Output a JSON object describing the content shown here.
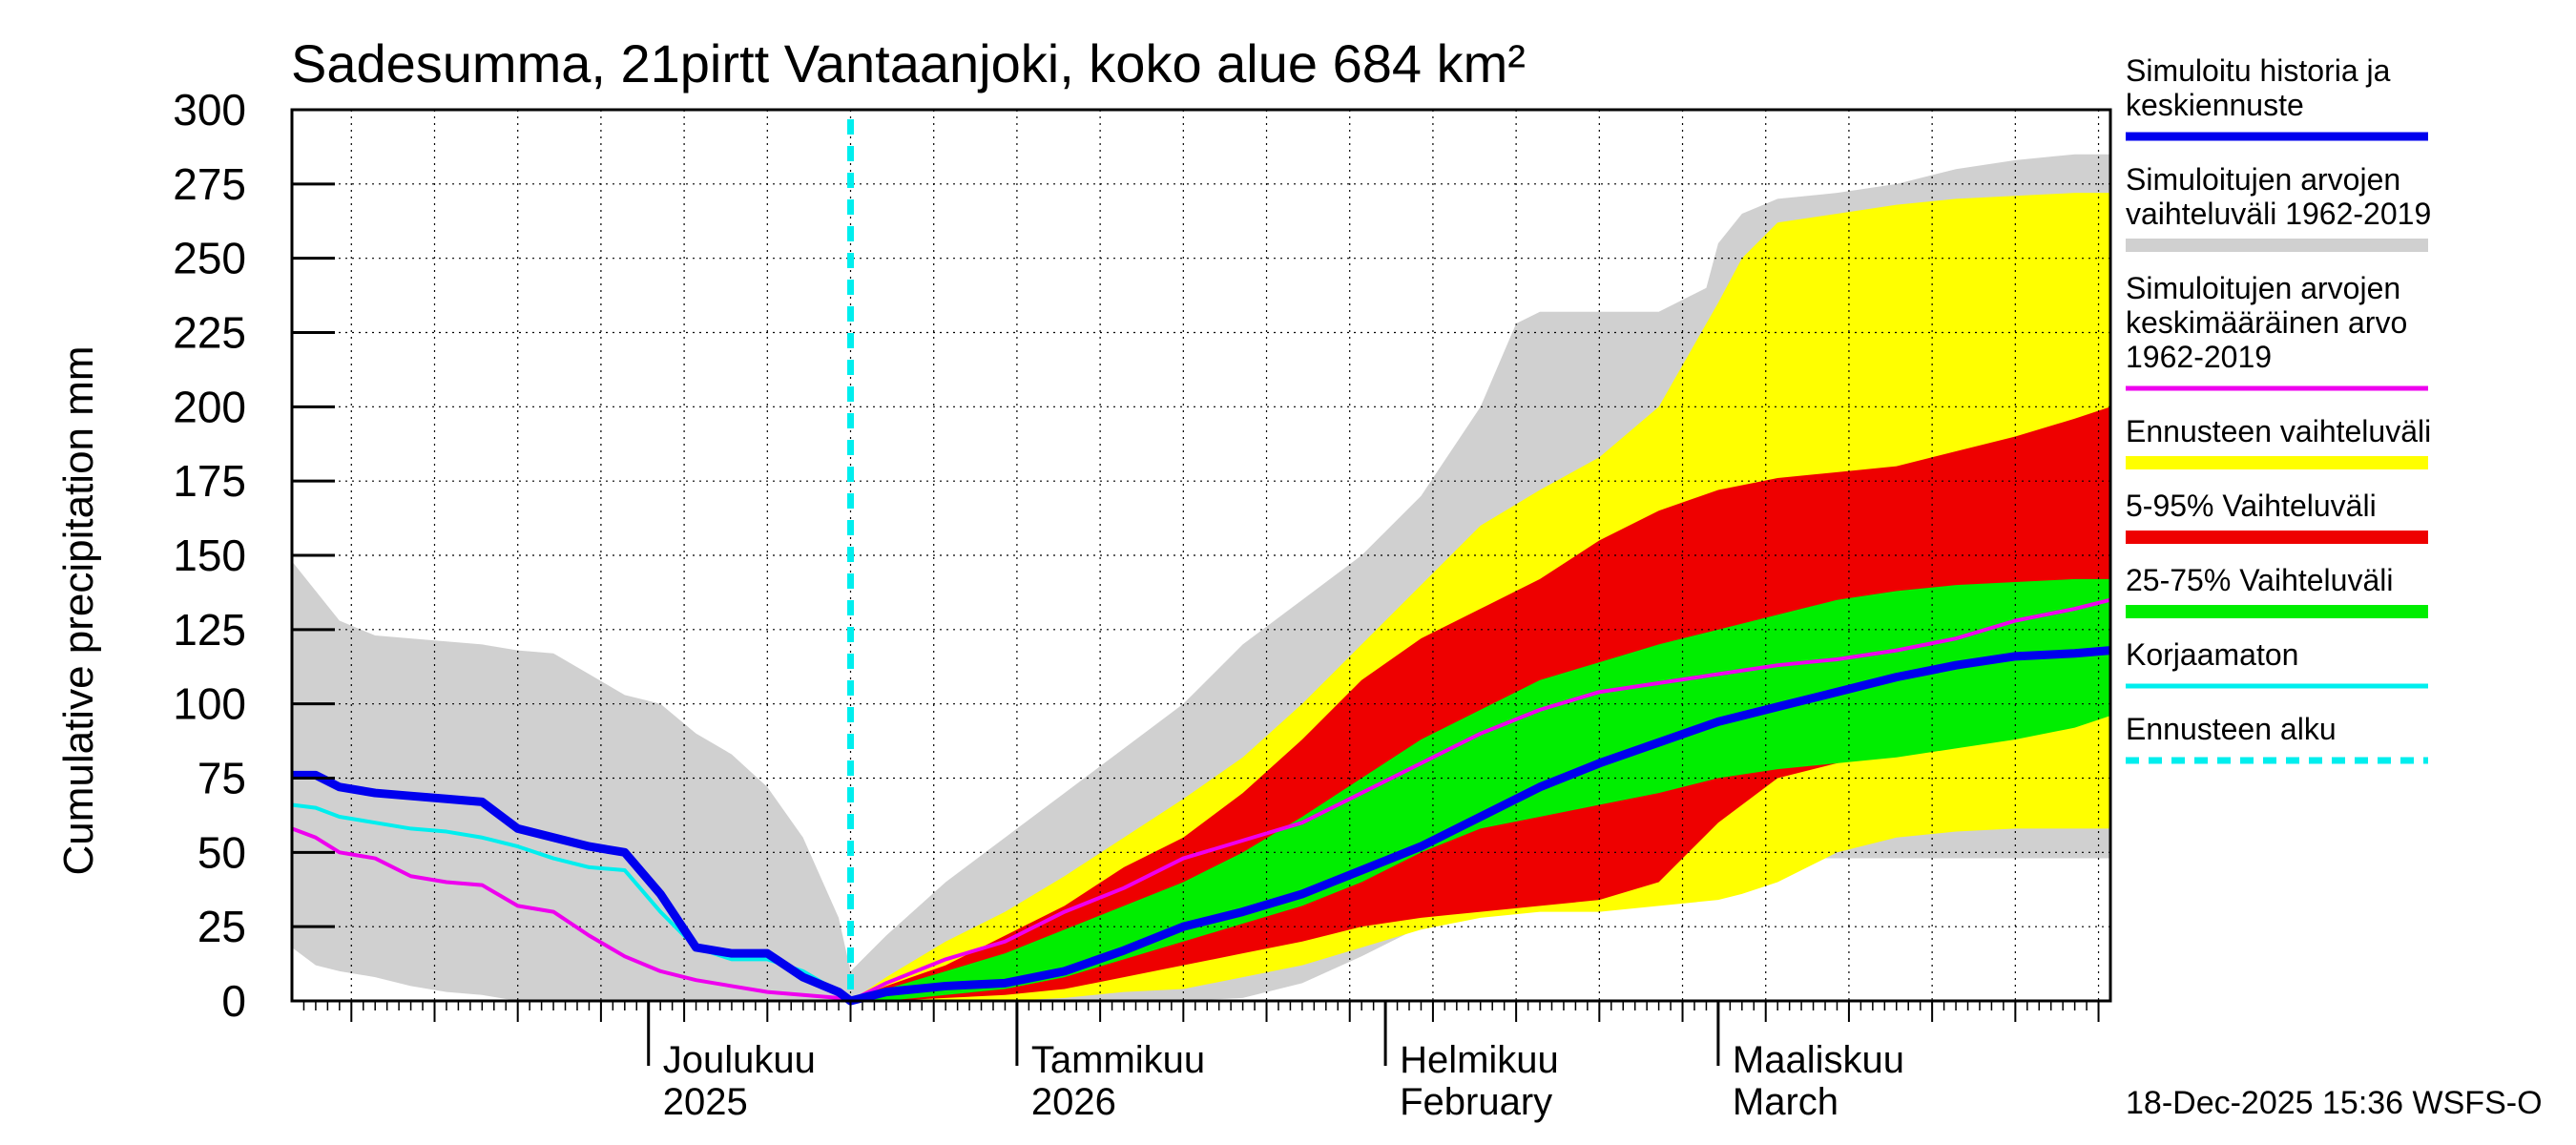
{
  "chart_data": {
    "type": "area",
    "title": "Sadesumma, 21pirtt Vantaanjoki, koko alue 684 km²",
    "ylabel": "Cumulative precipitation   mm",
    "ylim": [
      0,
      300
    ],
    "yticks": [
      0,
      25,
      50,
      75,
      100,
      125,
      150,
      175,
      200,
      225,
      250,
      275,
      300
    ],
    "ytick_labels": [
      "0",
      "25",
      "50",
      "75",
      "100",
      "125",
      "150",
      "175",
      "200",
      "225",
      "250",
      "275",
      "300"
    ],
    "x_unit": "days since 2025-11-01",
    "xlim": [
      0,
      153
    ],
    "month_labels": [
      {
        "x": 30,
        "line1": "Joulukuu",
        "line2": "2025"
      },
      {
        "x": 61,
        "line1": "Tammikuu",
        "line2": "2026"
      },
      {
        "x": 92,
        "line1": "Helmikuu",
        "line2": "February"
      },
      {
        "x": 120,
        "line1": "Maaliskuu",
        "line2": "March"
      }
    ],
    "forecast_start_x": 47,
    "footer": "18-Dec-2025 15:36 WSFS-O",
    "legend": [
      {
        "label": "Simuloitu historia ja keskiennuste",
        "lines": [
          "Simuloitu historia ja",
          "keskiennuste"
        ],
        "color": "#0000ee",
        "style": "thick"
      },
      {
        "label": "Simuloitujen arvojen vaihteluväli 1962-2019",
        "lines": [
          "Simuloitujen arvojen",
          "vaihteluväli 1962-2019"
        ],
        "color": "#d0d0d0",
        "style": "band"
      },
      {
        "label": "Simuloitujen arvojen keskimääräinen arvo 1962-2019",
        "lines": [
          "Simuloitujen arvojen",
          "keskimääräinen arvo",
          "  1962-2019"
        ],
        "color": "#ee00ee",
        "style": "line"
      },
      {
        "label": "Ennusteen vaihteluväli",
        "lines": [
          "Ennusteen vaihteluväli"
        ],
        "color": "#ffff00",
        "style": "band"
      },
      {
        "label": "5-95% Vaihteluväli",
        "lines": [
          "5-95% Vaihteluväli"
        ],
        "color": "#ee0000",
        "style": "band"
      },
      {
        "label": "25-75% Vaihteluväli",
        "lines": [
          "25-75% Vaihteluväli"
        ],
        "color": "#00ee00",
        "style": "band"
      },
      {
        "label": "Korjaamaton",
        "lines": [
          "Korjaamaton"
        ],
        "color": "#00eeee",
        "style": "line"
      },
      {
        "label": "Ennusteen alku",
        "lines": [
          "Ennusteen alku"
        ],
        "color": "#00eeee",
        "style": "dashed"
      }
    ],
    "series": [
      {
        "name": "Simuloitujen arvojen vaihteluväli 1962-2019",
        "kind": "band",
        "color": "#d0d0d0",
        "x": [
          0,
          2,
          4,
          7,
          10,
          13,
          16,
          19,
          22,
          25,
          28,
          31,
          34,
          37,
          40,
          43,
          46,
          47,
          50,
          55,
          60,
          65,
          70,
          75,
          80,
          85,
          90,
          95,
          100,
          103,
          105,
          110,
          115,
          119,
          120,
          122,
          125,
          130,
          135,
          140,
          145,
          150,
          153
        ],
        "upper": [
          148,
          138,
          128,
          123,
          122,
          121,
          120,
          118,
          117,
          110,
          103,
          100,
          90,
          83,
          72,
          55,
          28,
          10,
          22,
          40,
          55,
          70,
          85,
          100,
          120,
          135,
          150,
          170,
          200,
          228,
          232,
          232,
          232,
          240,
          255,
          265,
          270,
          272,
          275,
          280,
          283,
          285,
          285
        ],
        "lower": [
          18,
          12,
          10,
          8,
          5,
          3,
          2,
          0,
          0,
          0,
          0,
          0,
          0,
          0,
          0,
          0,
          0,
          0,
          0,
          0,
          0,
          0,
          0,
          0,
          1,
          6,
          15,
          25,
          32,
          38,
          40,
          42,
          45,
          47,
          48,
          48,
          48,
          48,
          48,
          48,
          48,
          48,
          48
        ]
      },
      {
        "name": "Ennusteen vaihteluväli",
        "kind": "band",
        "color": "#ffff00",
        "x": [
          47,
          50,
          55,
          60,
          65,
          70,
          75,
          80,
          85,
          90,
          95,
          100,
          105,
          110,
          115,
          120,
          122,
          125,
          130,
          135,
          140,
          145,
          150,
          153
        ],
        "upper": [
          0,
          8,
          20,
          30,
          42,
          55,
          68,
          82,
          100,
          120,
          140,
          160,
          172,
          183,
          200,
          235,
          250,
          262,
          265,
          268,
          270,
          271,
          272,
          272
        ],
        "lower": [
          0,
          0,
          0,
          0,
          1,
          3,
          4,
          8,
          12,
          18,
          24,
          28,
          30,
          30,
          32,
          34,
          36,
          40,
          50,
          55,
          57,
          58,
          58,
          58
        ]
      },
      {
        "name": "5-95% Vaihteluväli",
        "kind": "band",
        "color": "#ee0000",
        "x": [
          47,
          50,
          55,
          60,
          65,
          70,
          75,
          80,
          85,
          90,
          95,
          100,
          105,
          110,
          115,
          120,
          125,
          130,
          135,
          140,
          145,
          150,
          153
        ],
        "upper": [
          0,
          5,
          12,
          22,
          32,
          45,
          55,
          70,
          88,
          108,
          122,
          132,
          142,
          155,
          165,
          172,
          176,
          178,
          180,
          185,
          190,
          196,
          200
        ],
        "lower": [
          0,
          0,
          1,
          2,
          4,
          8,
          12,
          16,
          20,
          25,
          28,
          30,
          32,
          34,
          40,
          60,
          75,
          80,
          85,
          88,
          92,
          96,
          100
        ]
      },
      {
        "name": "25-75% Vaihteluväli",
        "kind": "band",
        "color": "#00ee00",
        "x": [
          47,
          50,
          55,
          60,
          65,
          70,
          75,
          80,
          85,
          90,
          95,
          100,
          105,
          110,
          115,
          120,
          125,
          130,
          135,
          140,
          145,
          150,
          153
        ],
        "upper": [
          0,
          4,
          10,
          16,
          24,
          32,
          40,
          50,
          62,
          75,
          88,
          98,
          108,
          114,
          120,
          125,
          130,
          135,
          138,
          140,
          141,
          142,
          142
        ],
        "lower": [
          0,
          0,
          2,
          4,
          8,
          14,
          20,
          26,
          32,
          40,
          50,
          58,
          62,
          66,
          70,
          75,
          78,
          80,
          82,
          85,
          88,
          92,
          96
        ]
      },
      {
        "name": "Simuloitujen arvojen keskimääräinen arvo 1962-2019",
        "kind": "line",
        "color": "#ee00ee",
        "x": [
          0,
          2,
          4,
          7,
          10,
          13,
          16,
          19,
          22,
          25,
          28,
          31,
          34,
          37,
          40,
          43,
          46,
          47,
          50,
          55,
          60,
          65,
          70,
          75,
          80,
          85,
          90,
          95,
          100,
          105,
          110,
          115,
          120,
          125,
          130,
          135,
          140,
          145,
          150,
          153
        ],
        "y": [
          58,
          55,
          50,
          48,
          42,
          40,
          39,
          32,
          30,
          22,
          15,
          10,
          7,
          5,
          3,
          2,
          1,
          0,
          6,
          14,
          20,
          30,
          38,
          48,
          54,
          60,
          70,
          80,
          90,
          98,
          104,
          107,
          110,
          113,
          115,
          118,
          122,
          128,
          132,
          135
        ]
      },
      {
        "name": "Korjaamaton",
        "kind": "line",
        "color": "#00eeee",
        "x": [
          0,
          2,
          4,
          7,
          10,
          13,
          16,
          19,
          22,
          25,
          28,
          31,
          34,
          37,
          40,
          43,
          46,
          47
        ],
        "y": [
          66,
          65,
          62,
          60,
          58,
          57,
          55,
          52,
          48,
          45,
          44,
          30,
          18,
          14,
          14,
          10,
          3,
          0
        ]
      },
      {
        "name": "Simuloitu historia ja keskiennuste",
        "kind": "line",
        "color": "#0000ee",
        "x": [
          0,
          2,
          4,
          7,
          10,
          13,
          16,
          19,
          22,
          25,
          28,
          31,
          34,
          37,
          40,
          43,
          46,
          47,
          50,
          55,
          60,
          65,
          70,
          75,
          80,
          85,
          90,
          95,
          100,
          105,
          110,
          115,
          120,
          125,
          130,
          135,
          140,
          145,
          150,
          153
        ],
        "y": [
          76,
          76,
          72,
          70,
          69,
          68,
          67,
          58,
          55,
          52,
          50,
          36,
          18,
          16,
          16,
          8,
          3,
          0,
          3,
          5,
          6,
          10,
          17,
          25,
          30,
          36,
          44,
          52,
          62,
          72,
          80,
          87,
          94,
          99,
          104,
          109,
          113,
          116,
          117,
          118
        ]
      }
    ]
  }
}
